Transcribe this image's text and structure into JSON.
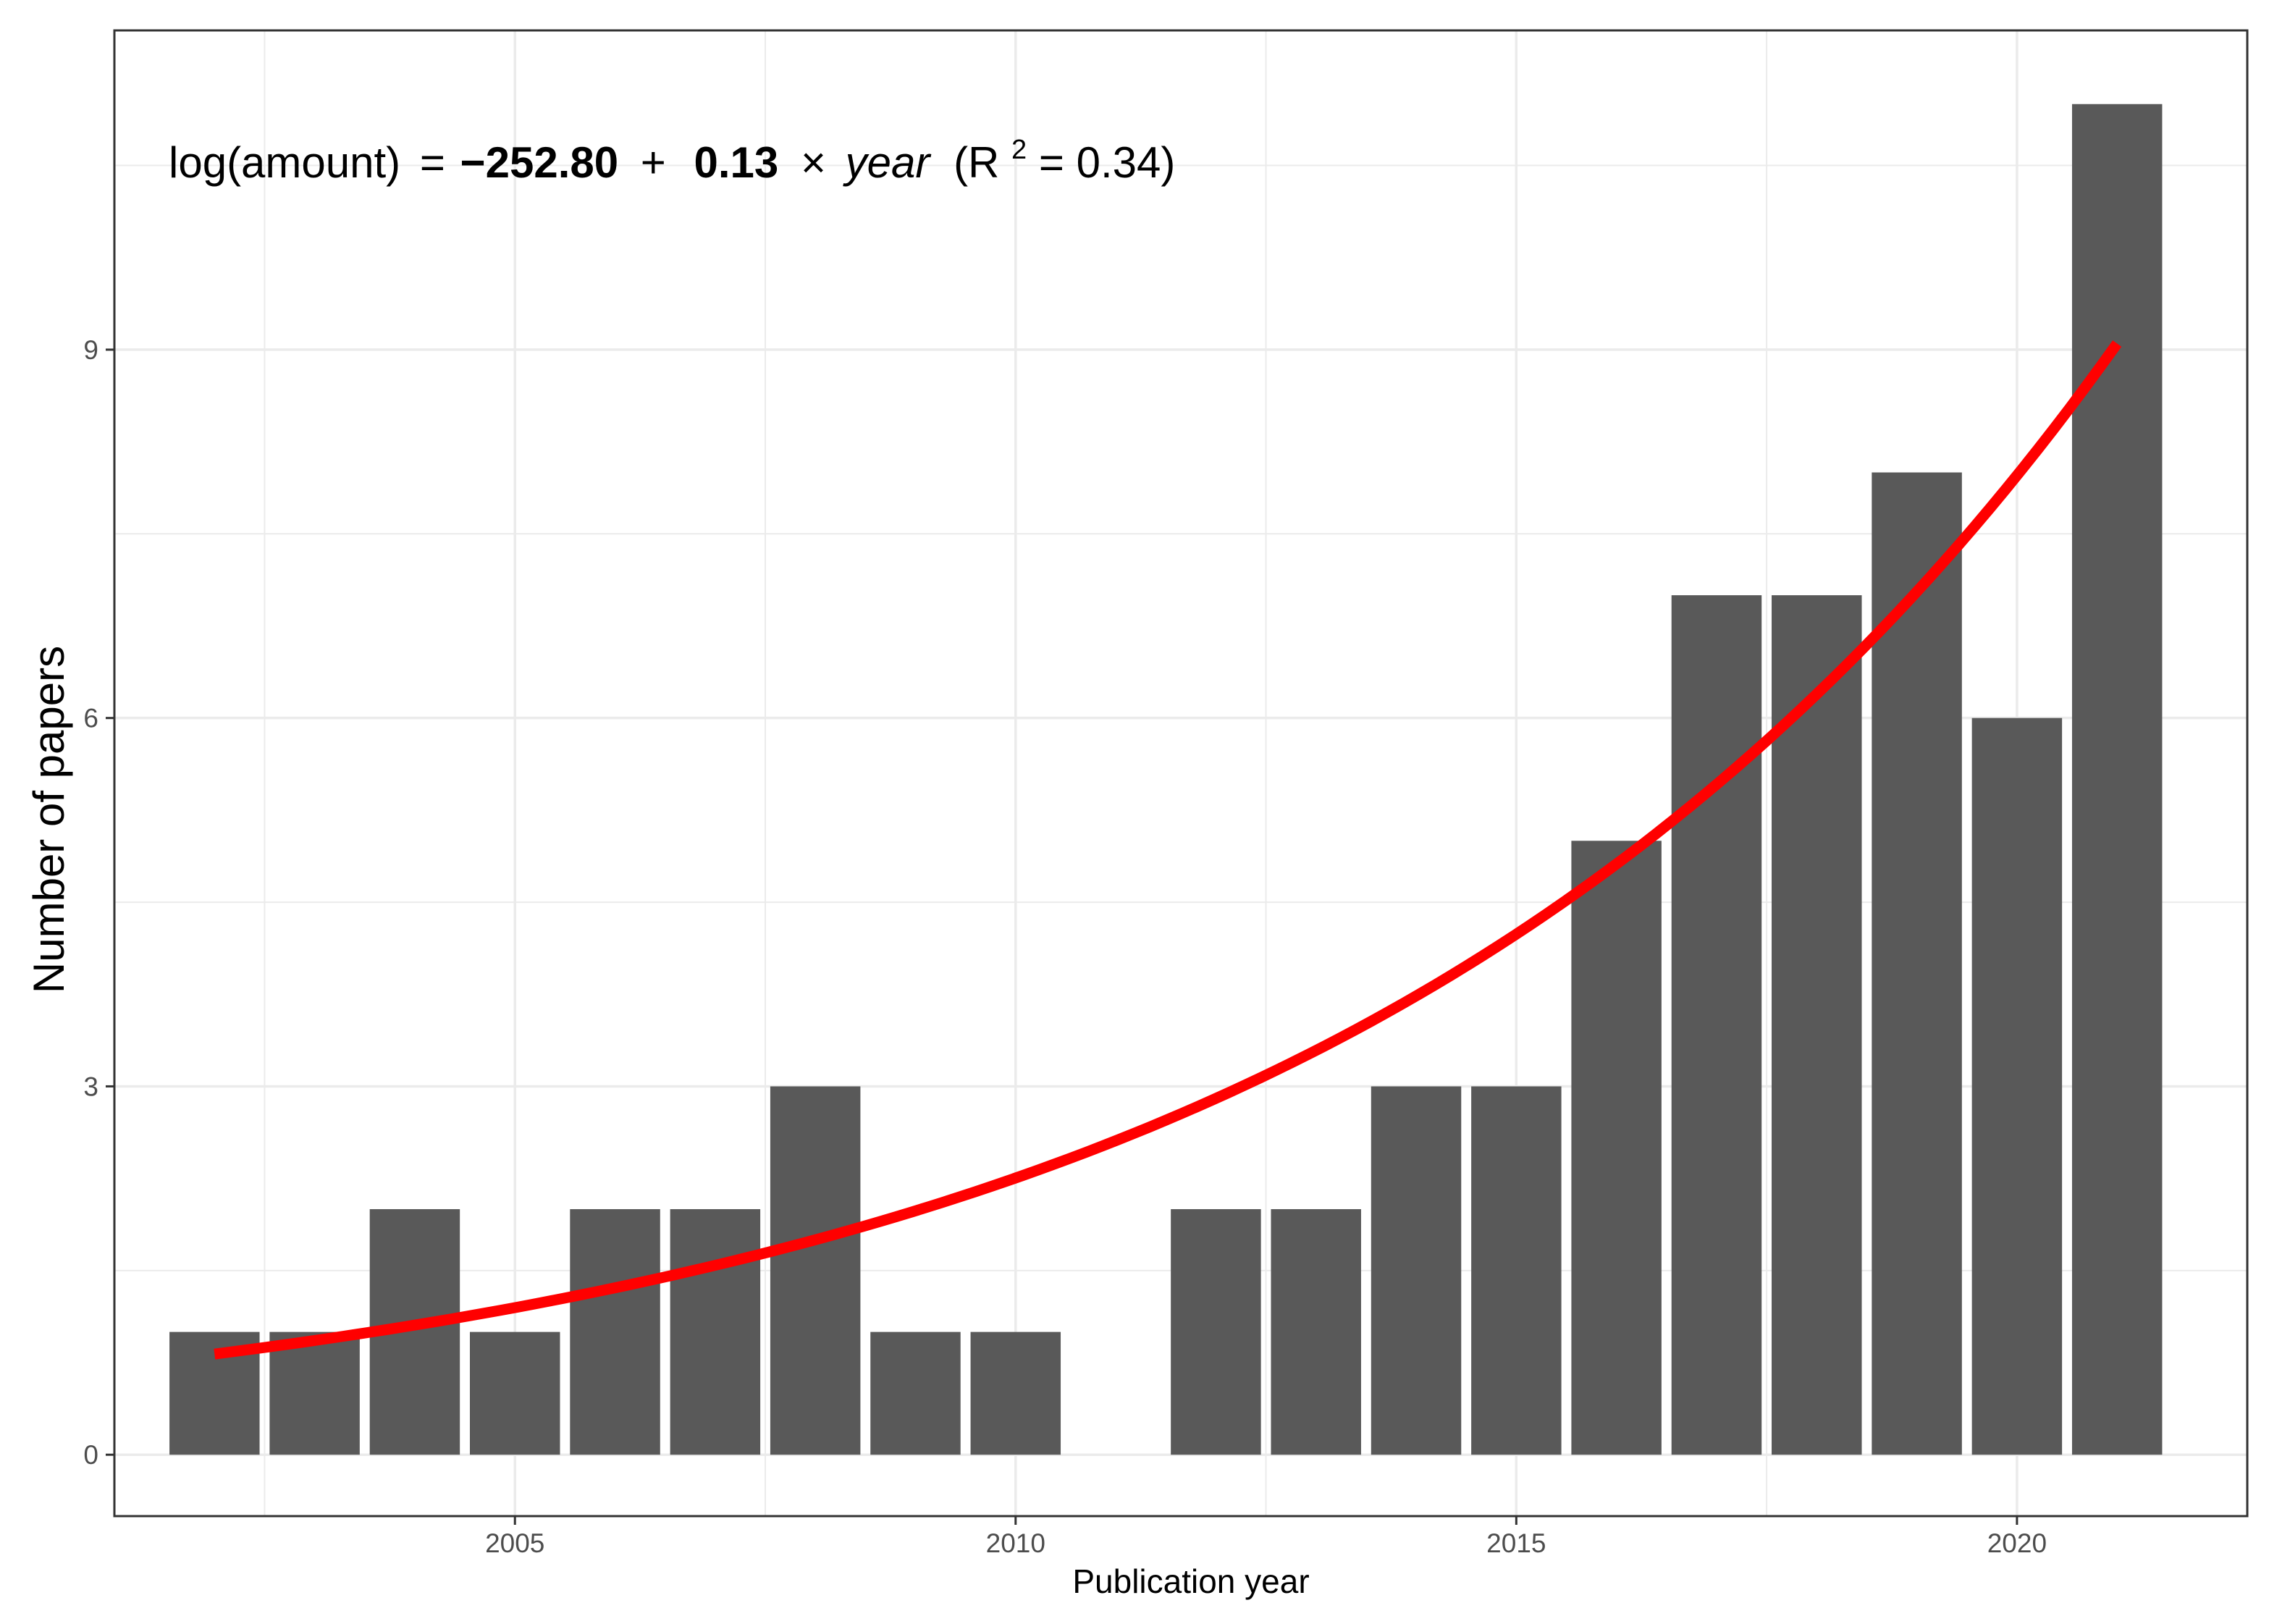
{
  "chart_data": {
    "type": "bar",
    "xlabel": "Publication year",
    "ylabel": "Number of papers",
    "x_ticks": [
      2005,
      2010,
      2015,
      2020
    ],
    "y_ticks": [
      0,
      3,
      6,
      9
    ],
    "xlim": [
      2001.0,
      2022.3
    ],
    "ylim": [
      -0.5,
      11.6
    ],
    "grid": true,
    "legend": "none",
    "colors": {
      "bar": "#595959",
      "trend": "#ff0000",
      "grid": "#ebebeb",
      "panel_border": "#333333"
    },
    "series": [
      {
        "type": "bar",
        "x": [
          2002,
          2003,
          2004,
          2005,
          2006,
          2007,
          2008,
          2009,
          2010,
          2012,
          2013,
          2014,
          2015,
          2016,
          2017,
          2018,
          2019,
          2020,
          2021
        ],
        "values": [
          1,
          1,
          2,
          1,
          2,
          2,
          3,
          1,
          1,
          2,
          2,
          3,
          3,
          5,
          7,
          7,
          8,
          6,
          11
        ]
      }
    ],
    "trend": {
      "type": "exponential",
      "intercept": -252.8,
      "slope": 0.13,
      "r_squared": 0.34,
      "x_range": [
        2002,
        2021
      ],
      "y_range": [
        0.82,
        9.05
      ]
    },
    "annotation": {
      "lhs": "log(amount)",
      "equals": "=",
      "intercept_text": "−252.80",
      "plus": "+",
      "slope_text": "0.13",
      "times": "×",
      "var": "year",
      "r2_open": "(R",
      "r2_sup": "2",
      "r2_value": " = 0.34)"
    }
  }
}
